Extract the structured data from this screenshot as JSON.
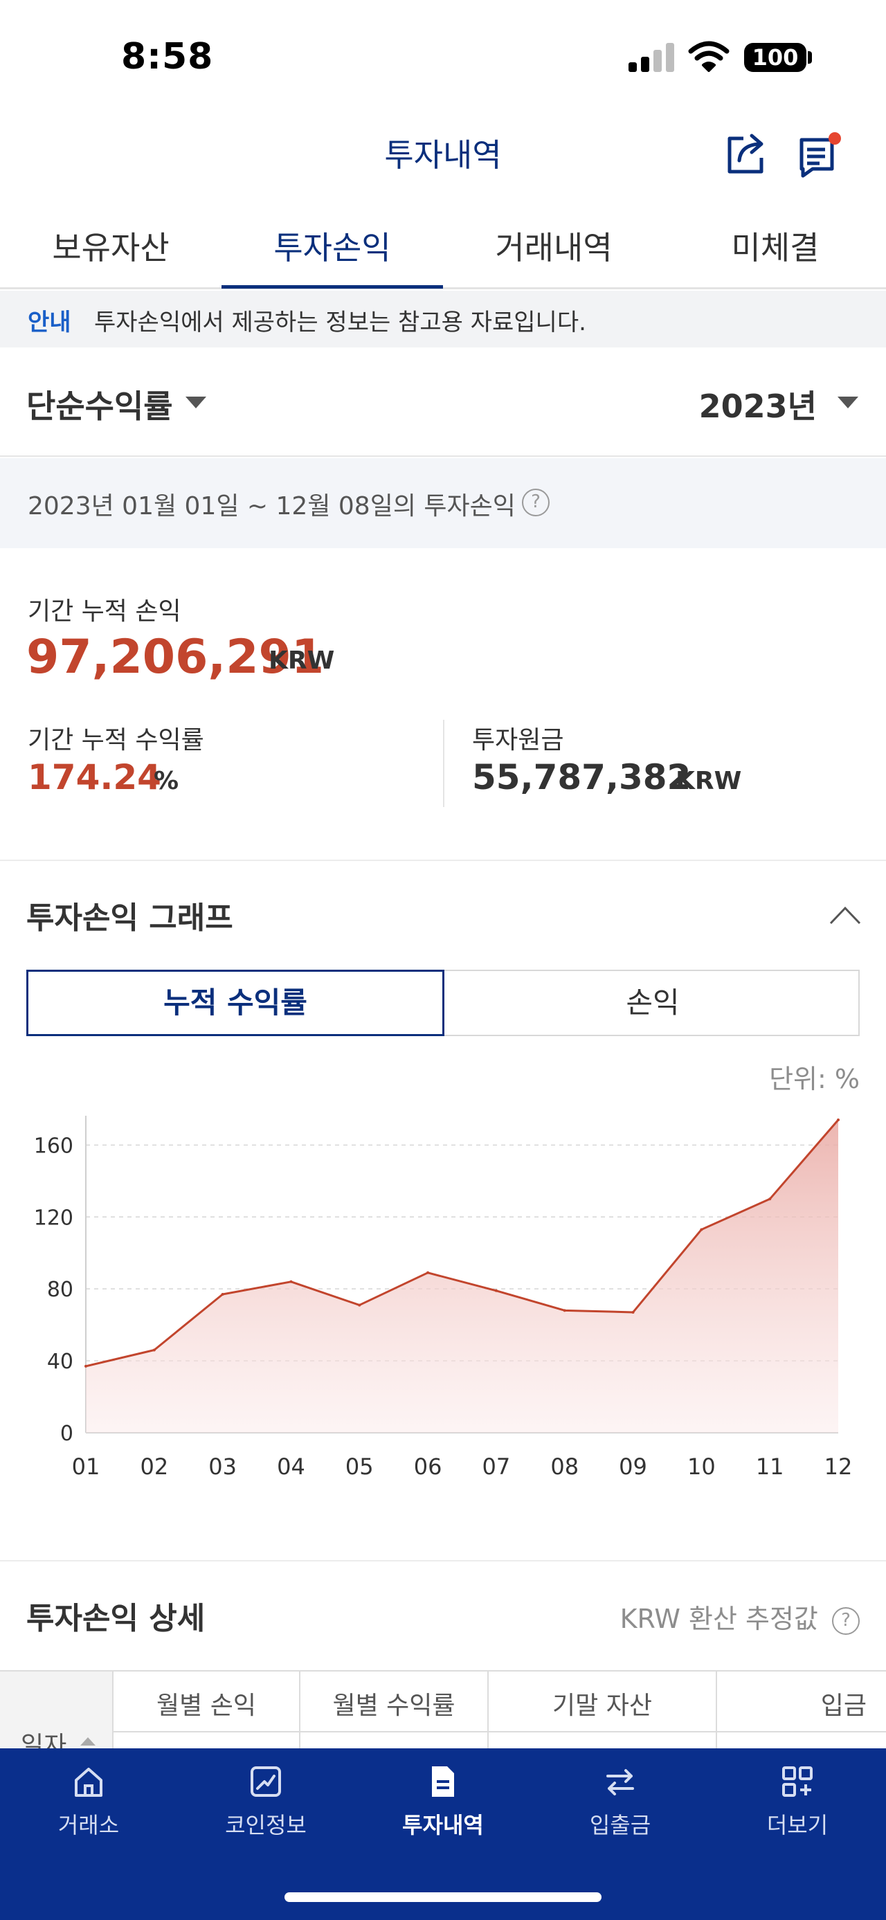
{
  "status_bar": {
    "time": "8:58",
    "battery": "100"
  },
  "header": {
    "title": "투자내역"
  },
  "tabs": [
    {
      "label": "보유자산",
      "active": false
    },
    {
      "label": "투자손익",
      "active": true
    },
    {
      "label": "거래내역",
      "active": false
    },
    {
      "label": "미체결",
      "active": false
    }
  ],
  "notice": {
    "tag": "안내",
    "text": "투자손익에서 제공하는 정보는 참고용 자료입니다."
  },
  "filters": {
    "return_type": "단순수익률",
    "year": "2023년"
  },
  "period": {
    "text": "2023년 01월 01일 ~ 12월 08일의 투자손익"
  },
  "summary": {
    "cumulative_pnl_label": "기간 누적 손익",
    "cumulative_pnl_value": "97,206,291",
    "cumulative_pnl_unit": "KRW",
    "cumulative_return_label": "기간 누적 수익률",
    "cumulative_return_value": "174.24",
    "cumulative_return_unit": "%",
    "principal_label": "투자원금",
    "principal_value": "55,787,382",
    "principal_unit": "KRW"
  },
  "graph": {
    "title": "투자손익 그래프",
    "toggle_cumulative": "누적 수익률",
    "toggle_pnl": "손익",
    "unit_note": "단위: %"
  },
  "details": {
    "title": "투자손익 상세",
    "note": "KRW 환산 추정값",
    "columns": {
      "date": "일자",
      "monthly_pnl": "월별 손익",
      "monthly_return": "월별 수익률",
      "end_assets": "기말 자산",
      "deposit": "입금"
    }
  },
  "bottom_nav": [
    {
      "label": "거래소",
      "icon": "home-icon",
      "active": false
    },
    {
      "label": "코인정보",
      "icon": "chart-icon",
      "active": false
    },
    {
      "label": "투자내역",
      "icon": "document-icon",
      "active": true
    },
    {
      "label": "입출금",
      "icon": "transfer-icon",
      "active": false
    },
    {
      "label": "더보기",
      "icon": "more-grid-icon",
      "active": false
    }
  ],
  "colors": {
    "brand_navy": "#0a2f7c",
    "profit_red": "#c2452d",
    "nav_bg": "#0a2f8c"
  },
  "chart_data": {
    "type": "area",
    "categories": [
      "01",
      "02",
      "03",
      "04",
      "05",
      "06",
      "07",
      "08",
      "09",
      "10",
      "11",
      "12"
    ],
    "values": [
      37,
      46,
      77,
      84,
      71,
      89,
      79,
      68,
      67,
      113,
      130,
      174
    ],
    "yticks": [
      0,
      40,
      80,
      120,
      160
    ],
    "ylim": [
      0,
      174
    ],
    "grid": true,
    "xlabel": "",
    "ylabel": "",
    "title": ""
  }
}
